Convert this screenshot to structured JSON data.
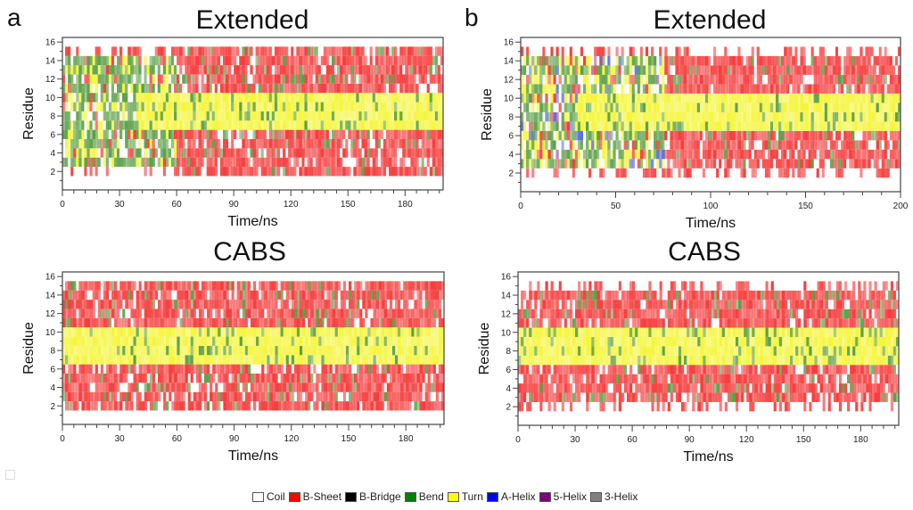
{
  "legend": {
    "entries": [
      {
        "label": "Coil",
        "color": "#ffffff"
      },
      {
        "label": "B-Sheet",
        "color": "#ff0000"
      },
      {
        "label": "B-Bridge",
        "color": "#000000"
      },
      {
        "label": "Bend",
        "color": "#008000"
      },
      {
        "label": "Turn",
        "color": "#ffff00"
      },
      {
        "label": "A-Helix",
        "color": "#0000ff"
      },
      {
        "label": "5-Helix",
        "color": "#800080"
      },
      {
        "label": "3-Helix",
        "color": "#808080"
      }
    ]
  },
  "panels": {
    "a_label": "a",
    "b_label": "b"
  },
  "chart_data": [
    {
      "id": "a-extended",
      "panel": "a",
      "type": "heatmap",
      "title": "Extended",
      "xlabel": "Time/ns",
      "ylabel": "Residue",
      "xlim": [
        0,
        200
      ],
      "ylim": [
        0,
        16.5
      ],
      "xticks": [
        0,
        30,
        60,
        90,
        120,
        150,
        180
      ],
      "yticks": [
        2,
        4,
        6,
        8,
        10,
        12,
        14,
        16
      ],
      "residues": [
        2,
        15
      ],
      "description": "Secondary structure per residue over time; early mixture of Bend/Coil/Turn, after ~60 ns residues 2-6 and 11-15 mostly B-Sheet, residues 7-10 mostly Turn",
      "regions": [
        {
          "residues": [
            2,
            2
          ],
          "time": [
            0,
            60
          ],
          "state": "Coil"
        },
        {
          "residues": [
            2,
            2
          ],
          "time": [
            60,
            200
          ],
          "state": "B-Sheet"
        },
        {
          "residues": [
            3,
            6
          ],
          "time": [
            0,
            60
          ],
          "state": "Bend"
        },
        {
          "residues": [
            3,
            6
          ],
          "time": [
            60,
            200
          ],
          "state": "B-Sheet"
        },
        {
          "residues": [
            7,
            10
          ],
          "time": [
            0,
            40
          ],
          "state": "Bend"
        },
        {
          "residues": [
            7,
            10
          ],
          "time": [
            40,
            200
          ],
          "state": "Turn"
        },
        {
          "residues": [
            11,
            14
          ],
          "time": [
            0,
            60
          ],
          "state": "Bend"
        },
        {
          "residues": [
            11,
            14
          ],
          "time": [
            60,
            200
          ],
          "state": "B-Sheet"
        },
        {
          "residues": [
            15,
            15
          ],
          "time": [
            0,
            60
          ],
          "state": "Coil"
        },
        {
          "residues": [
            15,
            15
          ],
          "time": [
            60,
            200
          ],
          "state": "B-Sheet"
        }
      ]
    },
    {
      "id": "b-extended",
      "panel": "b",
      "type": "heatmap",
      "title": "Extended",
      "xlabel": "Time/ns",
      "ylabel": "Residue",
      "xlim": [
        0,
        200
      ],
      "ylim": [
        0,
        16.5
      ],
      "xticks": [
        0,
        50,
        100,
        150,
        200
      ],
      "xtick_labels": [
        "0",
        "50",
        "100",
        "150",
        "200"
      ],
      "yticks": [
        2,
        4,
        6,
        8,
        10,
        12,
        14,
        16
      ],
      "residues": [
        2,
        15
      ],
      "description": "Early mixture of Bend/Coil/A-Helix/5-Helix, transitioning after ~75 ns to B-Sheet for residues 3-6 and 11-14, Turn for residues 7-10",
      "regions": [
        {
          "residues": [
            2,
            2
          ],
          "time": [
            0,
            200
          ],
          "state": "Coil"
        },
        {
          "residues": [
            3,
            6
          ],
          "time": [
            0,
            75
          ],
          "state": "Bend"
        },
        {
          "residues": [
            3,
            6
          ],
          "time": [
            75,
            200
          ],
          "state": "B-Sheet"
        },
        {
          "residues": [
            7,
            10
          ],
          "time": [
            0,
            30
          ],
          "state": "Bend"
        },
        {
          "residues": [
            7,
            10
          ],
          "time": [
            30,
            200
          ],
          "state": "Turn"
        },
        {
          "residues": [
            11,
            14
          ],
          "time": [
            0,
            75
          ],
          "state": "Bend"
        },
        {
          "residues": [
            11,
            14
          ],
          "time": [
            75,
            200
          ],
          "state": "B-Sheet"
        },
        {
          "residues": [
            15,
            15
          ],
          "time": [
            0,
            200
          ],
          "state": "Coil"
        }
      ]
    },
    {
      "id": "a-cabs",
      "panel": "a",
      "type": "heatmap",
      "title": "CABS",
      "xlabel": "Time/ns",
      "ylabel": "Residue",
      "xlim": [
        0,
        200
      ],
      "ylim": [
        0,
        16.5
      ],
      "xticks": [
        0,
        30,
        60,
        90,
        120,
        150,
        180
      ],
      "yticks": [
        2,
        4,
        6,
        8,
        10,
        12,
        14,
        16
      ],
      "residues": [
        2,
        15
      ],
      "description": "Stable throughout: residues 2-6 and 11-15 B-Sheet, residues 7-10 Turn",
      "regions": [
        {
          "residues": [
            2,
            6
          ],
          "time": [
            0,
            200
          ],
          "state": "B-Sheet"
        },
        {
          "residues": [
            7,
            10
          ],
          "time": [
            0,
            200
          ],
          "state": "Turn"
        },
        {
          "residues": [
            11,
            15
          ],
          "time": [
            0,
            200
          ],
          "state": "B-Sheet"
        }
      ]
    },
    {
      "id": "b-cabs",
      "panel": "b",
      "type": "heatmap",
      "title": "CABS",
      "xlabel": "Time/ns",
      "ylabel": "Residue",
      "xlim": [
        0,
        200
      ],
      "ylim": [
        0,
        16.5
      ],
      "xticks": [
        0,
        30,
        60,
        90,
        120,
        150,
        180
      ],
      "yticks": [
        2,
        4,
        6,
        8,
        10,
        12,
        14,
        16
      ],
      "residues": [
        2,
        15
      ],
      "description": "Stable throughout: residues 3-6 and 11-14 B-Sheet, residues 7-10 Turn, residues 2 and 15 mostly Coil",
      "regions": [
        {
          "residues": [
            2,
            2
          ],
          "time": [
            0,
            200
          ],
          "state": "Coil"
        },
        {
          "residues": [
            3,
            6
          ],
          "time": [
            0,
            200
          ],
          "state": "B-Sheet"
        },
        {
          "residues": [
            7,
            10
          ],
          "time": [
            0,
            200
          ],
          "state": "Turn"
        },
        {
          "residues": [
            11,
            14
          ],
          "time": [
            0,
            200
          ],
          "state": "B-Sheet"
        },
        {
          "residues": [
            15,
            15
          ],
          "time": [
            0,
            200
          ],
          "state": "Coil"
        }
      ]
    }
  ]
}
